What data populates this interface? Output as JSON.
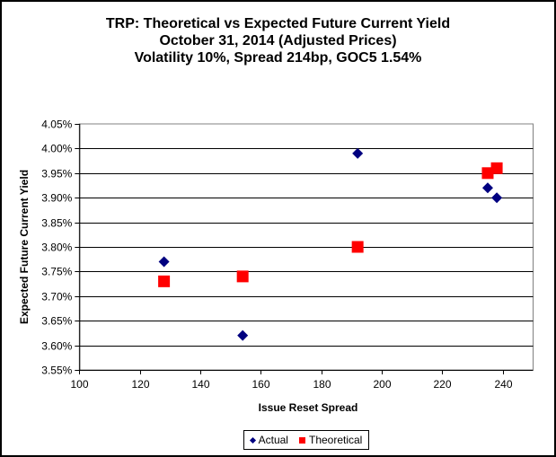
{
  "chart_data": {
    "type": "scatter",
    "title": "TRP: Theoretical vs Expected Future Current Yield",
    "subtitle_1": "October 31, 2014 (Adjusted Prices)",
    "subtitle_2": "Volatility  10%, Spread 214bp, GOC5 1.54%",
    "xlabel": "Issue  Reset  Spread",
    "ylabel": "Expected Future Current Yield",
    "xlim": [
      100,
      250
    ],
    "ylim": [
      3.55,
      4.05
    ],
    "x_ticks": [
      "100",
      "120",
      "140",
      "160",
      "180",
      "200",
      "220",
      "240"
    ],
    "x_tick_values": [
      100,
      120,
      140,
      160,
      180,
      200,
      220,
      240
    ],
    "y_ticks": [
      "3.55%",
      "3.60%",
      "3.65%",
      "3.70%",
      "3.75%",
      "3.80%",
      "3.85%",
      "3.90%",
      "3.95%",
      "4.00%",
      "4.05%"
    ],
    "y_tick_values": [
      3.55,
      3.6,
      3.65,
      3.7,
      3.75,
      3.8,
      3.85,
      3.9,
      3.95,
      4.0,
      4.05
    ],
    "grid": "horizontal",
    "legend_position": "bottom",
    "series": [
      {
        "name": "Actual",
        "marker": "diamond",
        "color": "#000080",
        "x": [
          128,
          154,
          192,
          235,
          238
        ],
        "y": [
          3.77,
          3.62,
          3.99,
          3.92,
          3.9
        ]
      },
      {
        "name": "Theoretical",
        "marker": "square",
        "color": "#ff0000",
        "x": [
          128,
          154,
          192,
          235,
          238
        ],
        "y": [
          3.73,
          3.74,
          3.8,
          3.95,
          3.96
        ]
      }
    ]
  }
}
